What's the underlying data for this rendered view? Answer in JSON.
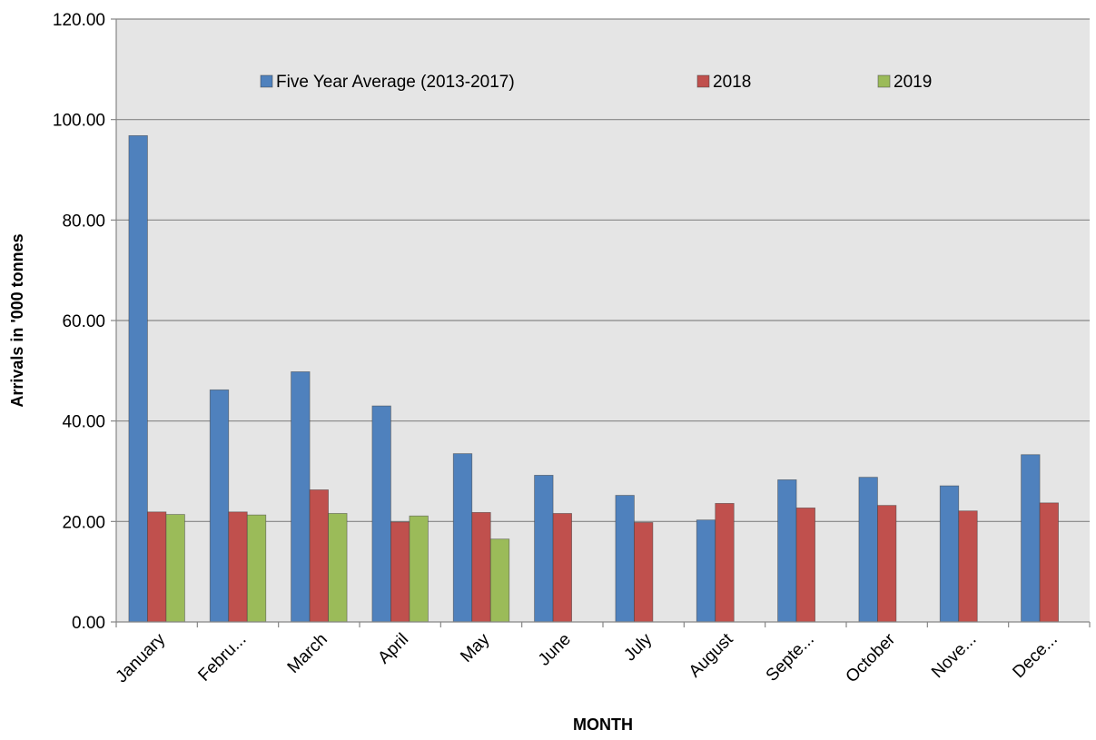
{
  "chart_data": {
    "type": "bar",
    "title": "",
    "xlabel": "MONTH",
    "ylabel": "Arrivals in '000 tonnes",
    "ylim": [
      0,
      120
    ],
    "yticks": [
      "0.00",
      "20.00",
      "40.00",
      "60.00",
      "80.00",
      "100.00",
      "120.00"
    ],
    "grid": true,
    "legend_position": "top",
    "categories": [
      "January",
      "Febru...",
      "March",
      "April",
      "May",
      "June",
      "July",
      "August",
      "Septe...",
      "October",
      "Nove...",
      "Dece..."
    ],
    "series": [
      {
        "name": "Five Year Average  (2013-2017)",
        "color": "#4f81bd",
        "values": [
          96.8,
          46.2,
          49.8,
          43.0,
          33.5,
          29.2,
          25.2,
          20.3,
          28.3,
          28.8,
          27.1,
          33.3
        ]
      },
      {
        "name": "2018",
        "color": "#c0504d",
        "values": [
          21.9,
          21.9,
          26.3,
          19.9,
          21.8,
          21.6,
          19.8,
          23.6,
          22.7,
          23.2,
          22.1,
          23.7
        ]
      },
      {
        "name": "2019",
        "color": "#9bbb59",
        "values": [
          21.4,
          21.3,
          21.6,
          21.1,
          16.5,
          null,
          null,
          null,
          null,
          null,
          null,
          null
        ]
      }
    ]
  }
}
